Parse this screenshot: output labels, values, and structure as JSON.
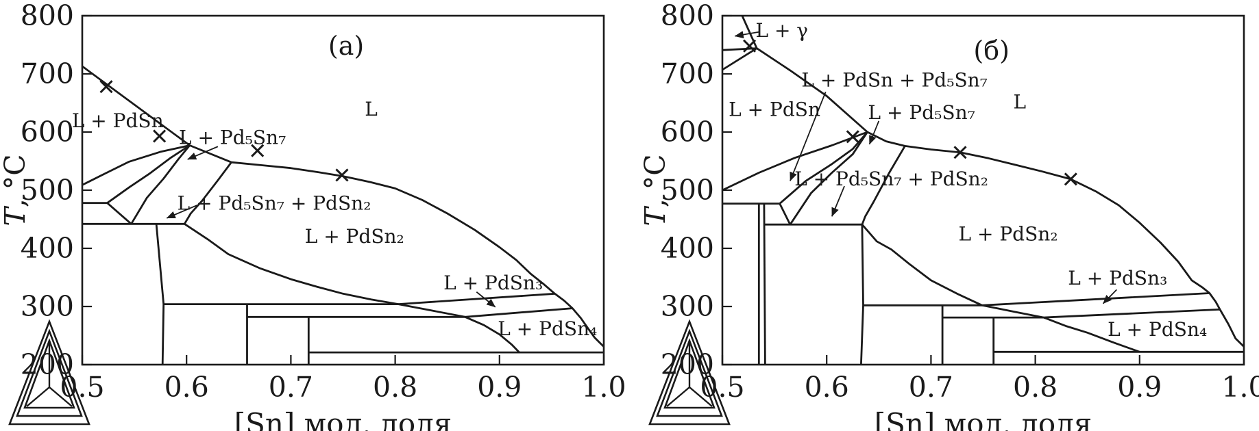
{
  "figure": {
    "background": "#ffffff",
    "ink": "#1a1a1a",
    "marker_glyph": "x-cross",
    "logo_name": "thermo-calc-triangle-logo"
  },
  "chart_data": [
    {
      "id": "a",
      "type": "line",
      "title": "(a)",
      "title_pos": {
        "x": 0.753,
        "T": 748
      },
      "xlabel": "[Sn] мол. доля",
      "ylabel_parts": [
        "T",
        ", °C"
      ],
      "xlim": [
        0.5,
        1.0
      ],
      "ylim": [
        200,
        800
      ],
      "grid": false,
      "xticks": [
        "0.5",
        "0.6",
        "0.7",
        "0.8",
        "0.9",
        "1.0"
      ],
      "yticks": [
        "800",
        "700",
        "600",
        "500",
        "400",
        "300",
        "200"
      ],
      "markers": [
        {
          "x": 0.523,
          "T": 678
        },
        {
          "x": 0.574,
          "T": 593
        },
        {
          "x": 0.668,
          "T": 568
        },
        {
          "x": 0.749,
          "T": 526
        }
      ],
      "boundaries": [
        {
          "name": "liquidus",
          "points": [
            [
              0.5,
              713
            ],
            [
              0.603,
              577
            ],
            [
              0.643,
              548
            ],
            [
              0.672,
              543
            ],
            [
              0.7,
              538
            ],
            [
              0.726,
              531
            ],
            [
              0.75,
              524
            ],
            [
              0.776,
              514
            ],
            [
              0.8,
              503
            ],
            [
              0.826,
              483
            ],
            [
              0.85,
              460
            ],
            [
              0.876,
              432
            ],
            [
              0.9,
              402
            ],
            [
              0.916,
              380
            ],
            [
              0.93,
              356
            ],
            [
              0.942,
              339
            ],
            [
              0.953,
              322
            ],
            [
              0.962,
              310
            ],
            [
              0.97,
              297
            ],
            [
              0.978,
              280
            ],
            [
              0.985,
              262
            ],
            [
              0.991,
              247
            ],
            [
              0.996,
              238
            ],
            [
              1.0,
              231
            ]
          ]
        },
        {
          "name": "pdsn-solvus",
          "points": [
            [
              0.5,
              509
            ],
            [
              0.52,
              527
            ],
            [
              0.545,
              549
            ],
            [
              0.575,
              566
            ],
            [
              0.603,
              577
            ]
          ]
        },
        {
          "name": "fan-curve-2",
          "points": [
            [
              0.524,
              478
            ],
            [
              0.545,
              505
            ],
            [
              0.565,
              529
            ],
            [
              0.585,
              556
            ],
            [
              0.603,
              577
            ]
          ]
        },
        {
          "name": "fan-curve-3",
          "points": [
            [
              0.547,
              442
            ],
            [
              0.562,
              487
            ],
            [
              0.578,
              520
            ],
            [
              0.592,
              553
            ],
            [
              0.603,
              577
            ]
          ]
        },
        {
          "name": "wedge-edge",
          "points": [
            [
              0.524,
              478
            ],
            [
              0.547,
              442
            ]
          ]
        },
        {
          "name": "isotherm-478",
          "points": [
            [
              0.5,
              478
            ],
            [
              0.524,
              478
            ]
          ]
        },
        {
          "name": "isotherm-442",
          "points": [
            [
              0.5,
              442
            ],
            [
              0.598,
              442
            ]
          ]
        },
        {
          "name": "pd5sn7-right-edge",
          "points": [
            [
              0.643,
              548
            ],
            [
              0.63,
              517
            ],
            [
              0.615,
              482
            ],
            [
              0.604,
              460
            ],
            [
              0.598,
              442
            ]
          ]
        },
        {
          "name": "pdsn2-solvus",
          "points": [
            [
              0.598,
              442
            ],
            [
              0.62,
              416
            ],
            [
              0.64,
              390
            ],
            [
              0.67,
              366
            ],
            [
              0.7,
              347
            ],
            [
              0.725,
              334
            ],
            [
              0.75,
              322
            ],
            [
              0.777,
              312
            ],
            [
              0.803,
              304
            ],
            [
              0.835,
              293
            ],
            [
              0.867,
              282
            ],
            [
              0.885,
              268
            ],
            [
              0.9,
              252
            ],
            [
              0.912,
              234
            ],
            [
              0.919,
              221
            ]
          ]
        },
        {
          "name": "isotherm-304",
          "points": [
            [
              0.578,
              304
            ],
            [
              0.803,
              304
            ]
          ]
        },
        {
          "name": "pdsn3-band-top",
          "points": [
            [
              0.803,
              304
            ],
            [
              0.953,
              322
            ]
          ]
        },
        {
          "name": "isotherm-282",
          "points": [
            [
              0.658,
              282
            ],
            [
              0.867,
              282
            ]
          ]
        },
        {
          "name": "pdsn3-band-bottom",
          "points": [
            [
              0.867,
              282
            ],
            [
              0.97,
              297
            ]
          ]
        },
        {
          "name": "isotherm-221",
          "points": [
            [
              0.717,
              221
            ],
            [
              1.0,
              221
            ]
          ]
        },
        {
          "name": "compound-line-1",
          "points": [
            [
              0.571,
              442
            ],
            [
              0.578,
              304
            ],
            [
              0.577,
              200
            ]
          ]
        },
        {
          "name": "compound-line-2",
          "points": [
            [
              0.658,
              304
            ],
            [
              0.658,
              200
            ]
          ]
        },
        {
          "name": "compound-line-3",
          "points": [
            [
              0.717,
              282
            ],
            [
              0.717,
              200
            ]
          ]
        }
      ],
      "region_labels": [
        {
          "text": "L + PdSn",
          "x": 0.534,
          "T": 619
        },
        {
          "text": "L + Pd₅Sn₇",
          "x": 0.644,
          "T": 590,
          "arrow": {
            "x1": 0.63,
            "T1": 575,
            "x2": 0.601,
            "T2": 553
          }
        },
        {
          "text": "L",
          "x": 0.777,
          "T": 639
        },
        {
          "text": "L + Pd₅Sn₇ + PdSn₂",
          "x": 0.684,
          "T": 477,
          "arrow": {
            "x1": 0.61,
            "T1": 474,
            "x2": 0.581,
            "T2": 452
          }
        },
        {
          "text": "L + PdSn₂",
          "x": 0.761,
          "T": 420
        },
        {
          "text": "L + PdSn₃",
          "x": 0.894,
          "T": 340,
          "arrow": {
            "x1": 0.878,
            "T1": 325,
            "x2": 0.896,
            "T2": 299
          }
        },
        {
          "text": "L + PdSn₄",
          "x": 0.946,
          "T": 261
        }
      ]
    },
    {
      "id": "b",
      "type": "line",
      "title": "(б)",
      "title_pos": {
        "x": 0.758,
        "T": 740
      },
      "xlabel": "[Sn] мол. доля",
      "ylabel_parts": [
        "T",
        ", °C"
      ],
      "xlim": [
        0.5,
        1.0
      ],
      "ylim": [
        200,
        800
      ],
      "grid": false,
      "xticks": [
        "0.5",
        "0.6",
        "0.7",
        "0.8",
        "0.9",
        "1.0"
      ],
      "yticks": [
        "800",
        "700",
        "600",
        "500",
        "400",
        "300",
        "200"
      ],
      "markers": [
        {
          "x": 0.526,
          "T": 748
        },
        {
          "x": 0.625,
          "T": 592
        },
        {
          "x": 0.728,
          "T": 565
        },
        {
          "x": 0.834,
          "T": 519
        }
      ],
      "boundaries": [
        {
          "name": "gamma-edge",
          "points": [
            [
              0.519,
              800
            ],
            [
              0.533,
              744
            ]
          ]
        },
        {
          "name": "gamma-isotherm-741",
          "points": [
            [
              0.5,
              741
            ],
            [
              0.533,
              744
            ]
          ]
        },
        {
          "name": "gamma-isotherm-707",
          "points": [
            [
              0.5,
              707
            ],
            [
              0.533,
              744
            ]
          ]
        },
        {
          "name": "liquidus",
          "points": [
            [
              0.533,
              744
            ],
            [
              0.565,
              706
            ],
            [
              0.6,
              662
            ],
            [
              0.639,
              600
            ],
            [
              0.657,
              584
            ],
            [
              0.675,
              576
            ],
            [
              0.7,
              570
            ],
            [
              0.728,
              565
            ],
            [
              0.755,
              555
            ],
            [
              0.78,
              544
            ],
            [
              0.807,
              532
            ],
            [
              0.834,
              519
            ],
            [
              0.858,
              498
            ],
            [
              0.88,
              474
            ],
            [
              0.9,
              444
            ],
            [
              0.92,
              410
            ],
            [
              0.937,
              377
            ],
            [
              0.95,
              345
            ],
            [
              0.96,
              333
            ],
            [
              0.967,
              323
            ],
            [
              0.973,
              308
            ],
            [
              0.977,
              295
            ],
            [
              0.985,
              270
            ],
            [
              0.992,
              245
            ],
            [
              1.0,
              231
            ]
          ]
        },
        {
          "name": "pdsn-solvus",
          "points": [
            [
              0.5,
              500
            ],
            [
              0.535,
              530
            ],
            [
              0.57,
              556
            ],
            [
              0.605,
              577
            ],
            [
              0.639,
              600
            ]
          ]
        },
        {
          "name": "fan-curve-2",
          "points": [
            [
              0.555,
              477
            ],
            [
              0.58,
              516
            ],
            [
              0.605,
              545
            ],
            [
              0.625,
              571
            ],
            [
              0.639,
              600
            ]
          ]
        },
        {
          "name": "fan-curve-3",
          "points": [
            [
              0.565,
              441
            ],
            [
              0.585,
              495
            ],
            [
              0.605,
              530
            ],
            [
              0.625,
              562
            ],
            [
              0.639,
              600
            ]
          ]
        },
        {
          "name": "wedge-edge",
          "points": [
            [
              0.555,
              477
            ],
            [
              0.565,
              441
            ]
          ]
        },
        {
          "name": "isotherm-477",
          "points": [
            [
              0.5,
              477
            ],
            [
              0.555,
              477
            ]
          ]
        },
        {
          "name": "isotherm-441",
          "points": [
            [
              0.541,
              441
            ],
            [
              0.634,
              441
            ]
          ]
        },
        {
          "name": "pd5sn7-right-edge",
          "points": [
            [
              0.675,
              576
            ],
            [
              0.66,
              530
            ],
            [
              0.645,
              480
            ],
            [
              0.637,
              455
            ],
            [
              0.634,
              441
            ]
          ]
        },
        {
          "name": "pdsn2-solvus",
          "points": [
            [
              0.634,
              441
            ],
            [
              0.648,
              412
            ],
            [
              0.662,
              398
            ],
            [
              0.68,
              372
            ],
            [
              0.7,
              345
            ],
            [
              0.725,
              322
            ],
            [
              0.749,
              302
            ],
            [
              0.78,
              291
            ],
            [
              0.808,
              281
            ],
            [
              0.83,
              266
            ],
            [
              0.85,
              255
            ],
            [
              0.875,
              238
            ],
            [
              0.9,
              222
            ]
          ]
        },
        {
          "name": "isotherm-302",
          "points": [
            [
              0.635,
              302
            ],
            [
              0.749,
              302
            ]
          ]
        },
        {
          "name": "pdsn3-band-top",
          "points": [
            [
              0.749,
              302
            ],
            [
              0.967,
              323
            ]
          ]
        },
        {
          "name": "isotherm-281",
          "points": [
            [
              0.711,
              281
            ],
            [
              0.808,
              281
            ]
          ]
        },
        {
          "name": "pdsn3-band-bottom",
          "points": [
            [
              0.808,
              281
            ],
            [
              0.977,
              295
            ]
          ]
        },
        {
          "name": "isotherm-222",
          "points": [
            [
              0.76,
              222
            ],
            [
              1.0,
              222
            ]
          ]
        },
        {
          "name": "compound-line-1a",
          "points": [
            [
              0.535,
              477
            ],
            [
              0.535,
              200
            ]
          ]
        },
        {
          "name": "compound-line-1b",
          "points": [
            [
              0.54,
              477
            ],
            [
              0.541,
              200
            ]
          ]
        },
        {
          "name": "compound-line-2",
          "points": [
            [
              0.634,
              441
            ],
            [
              0.635,
              302
            ],
            [
              0.633,
              200
            ]
          ]
        },
        {
          "name": "compound-line-3",
          "points": [
            [
              0.711,
              302
            ],
            [
              0.711,
              200
            ]
          ]
        },
        {
          "name": "compound-line-4",
          "points": [
            [
              0.76,
              281
            ],
            [
              0.76,
              200
            ]
          ]
        }
      ],
      "region_labels": [
        {
          "text": "L + γ",
          "x": 0.557,
          "T": 774,
          "arrow": {
            "x1": 0.535,
            "T1": 772,
            "x2": 0.512,
            "T2": 765
          }
        },
        {
          "text": "L + PdSn",
          "x": 0.55,
          "T": 638
        },
        {
          "text": "L + PdSn + Pd₅Sn₇",
          "x": 0.665,
          "T": 689,
          "arrow": {
            "x1": 0.599,
            "T1": 669,
            "x2": 0.565,
            "T2": 516
          }
        },
        {
          "text": "L + Pd₅Sn₇",
          "x": 0.691,
          "T": 633,
          "arrow": {
            "x1": 0.65,
            "T1": 619,
            "x2": 0.641,
            "T2": 579
          }
        },
        {
          "text": "L",
          "x": 0.785,
          "T": 651
        },
        {
          "text": "L + Pd₅Sn₇ + PdSn₂",
          "x": 0.662,
          "T": 519,
          "arrow": {
            "x1": 0.617,
            "T1": 507,
            "x2": 0.605,
            "T2": 455
          }
        },
        {
          "text": "L + PdSn₂",
          "x": 0.774,
          "T": 424
        },
        {
          "text": "L + PdSn₃",
          "x": 0.879,
          "T": 348,
          "arrow": {
            "x1": 0.878,
            "T1": 329,
            "x2": 0.865,
            "T2": 305
          }
        },
        {
          "text": "L + PdSn₄",
          "x": 0.917,
          "T": 260
        }
      ]
    }
  ]
}
